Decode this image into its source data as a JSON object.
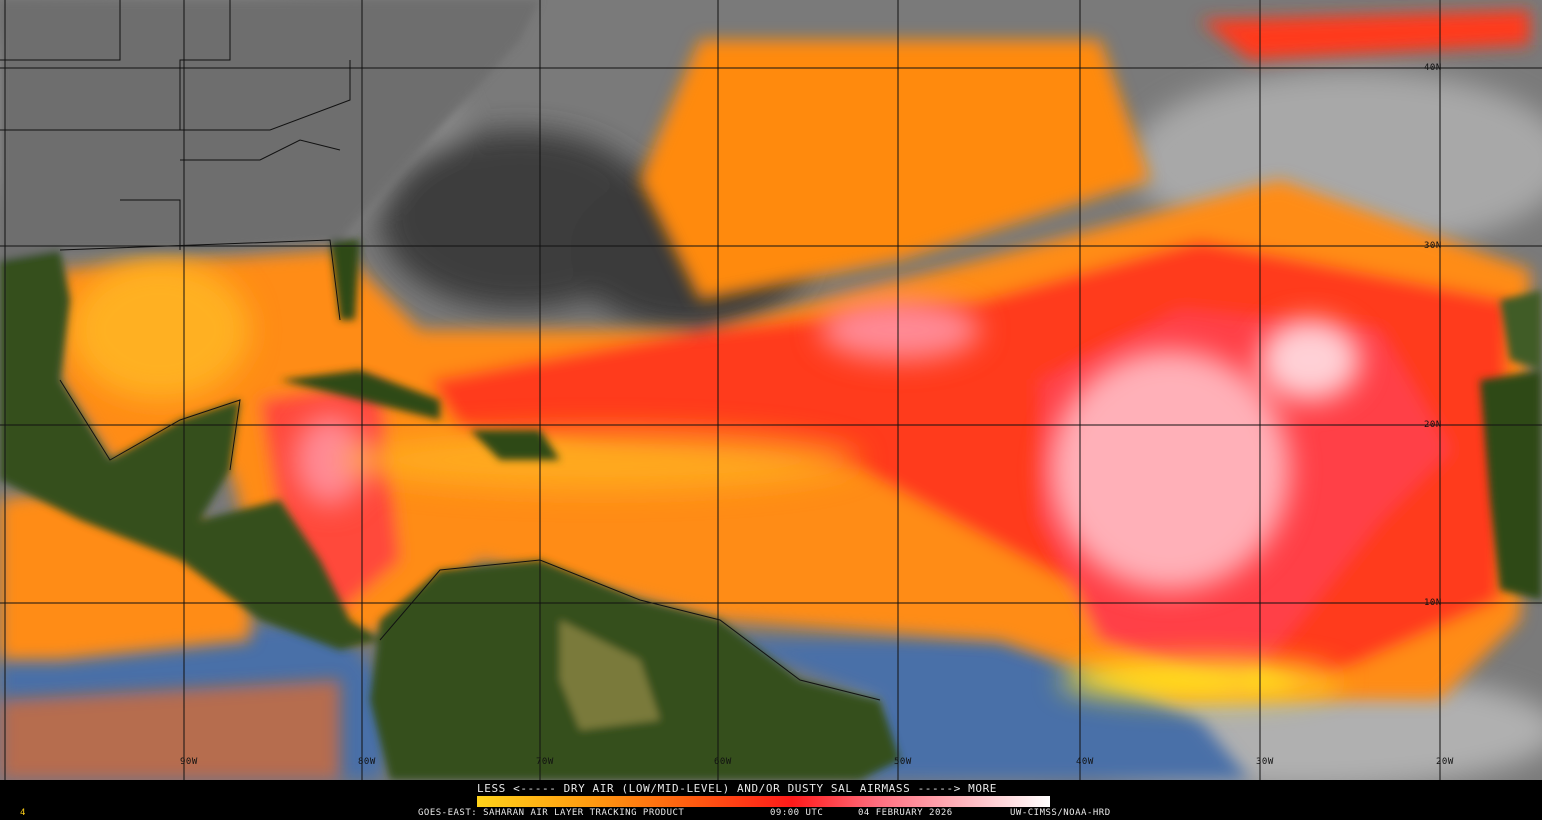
{
  "map": {
    "lat_labels": [
      "40N",
      "30N",
      "20N",
      "10N"
    ],
    "lon_labels": [
      "90W",
      "80W",
      "70W",
      "60W",
      "50W",
      "40W",
      "30W",
      "20W"
    ],
    "colors": {
      "ocean_clear": "#4a6fa8",
      "land": "#2f4a1a",
      "cloud": "#b8b8b8",
      "dry_air_low": "#ffd21a",
      "dry_air_mid": "#ff5a10",
      "dry_air_high": "#ff1a1a",
      "dry_air_max": "#ffc0c8"
    }
  },
  "legend": {
    "title": "LESS <----- DRY AIR (LOW/MID-LEVEL) AND/OR DUSTY SAL AIRMASS -----> MORE",
    "scale_from": "#ffd21a",
    "scale_to": "#ffffff"
  },
  "footer": {
    "frame": "4",
    "product": "GOES-EAST: SAHARAN AIR LAYER TRACKING PRODUCT",
    "time": "09:00 UTC",
    "date": "04 FEBRUARY 2026",
    "credit": "UW-CIMSS/NOAA-HRD"
  }
}
